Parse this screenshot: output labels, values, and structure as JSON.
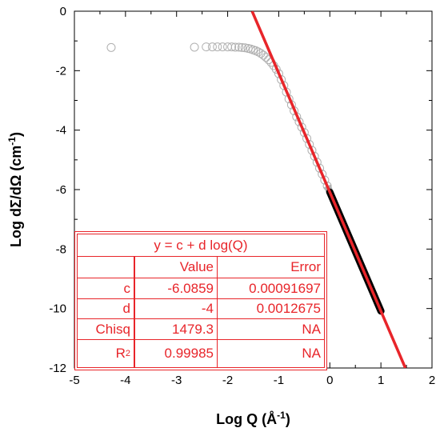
{
  "chart_data": {
    "type": "scatter",
    "xlabel_main": "Log Q (Å",
    "xlabel_sup": "-1",
    "xlabel_tail": ")",
    "ylabel_main": "Log dΣ/dΩ (cm",
    "ylabel_sup": "-1",
    "ylabel_tail": ")",
    "xlim": [
      -5,
      2
    ],
    "ylim": [
      -12,
      0
    ],
    "xticks": [
      -5,
      -4,
      -3,
      -2,
      -1,
      0,
      1,
      2
    ],
    "yticks": [
      0,
      -2,
      -4,
      -6,
      -8,
      -10,
      -12
    ],
    "grid": false,
    "series": [
      {
        "kind": "data-markers",
        "color": "#b0b0b0",
        "points": [
          [
            -4.28,
            -1.22
          ],
          [
            -2.65,
            -1.21
          ],
          [
            -2.42,
            -1.2
          ],
          [
            -2.3,
            -1.2
          ],
          [
            -2.2,
            -1.2
          ],
          [
            -2.1,
            -1.2
          ],
          [
            -2.0,
            -1.2
          ],
          [
            -1.92,
            -1.2
          ],
          [
            -1.85,
            -1.21
          ],
          [
            -1.78,
            -1.21
          ],
          [
            -1.72,
            -1.22
          ],
          [
            -1.66,
            -1.23
          ],
          [
            -1.6,
            -1.25
          ],
          [
            -1.55,
            -1.27
          ],
          [
            -1.5,
            -1.3
          ],
          [
            -1.45,
            -1.33
          ],
          [
            -1.4,
            -1.37
          ],
          [
            -1.35,
            -1.42
          ],
          [
            -1.3,
            -1.48
          ],
          [
            -1.25,
            -1.55
          ],
          [
            -1.2,
            -1.63
          ],
          [
            -1.15,
            -1.72
          ],
          [
            -1.1,
            -1.83
          ],
          [
            -1.05,
            -1.95
          ],
          [
            -1.0,
            -2.1
          ],
          [
            -0.95,
            -2.3
          ],
          [
            -0.9,
            -2.5
          ],
          [
            -0.85,
            -2.72
          ],
          [
            -0.8,
            -2.95
          ],
          [
            -0.75,
            -3.15
          ],
          [
            -0.7,
            -3.35
          ],
          [
            -0.65,
            -3.55
          ],
          [
            -0.6,
            -3.72
          ],
          [
            -0.55,
            -3.9
          ],
          [
            -0.5,
            -4.08
          ],
          [
            -0.45,
            -4.28
          ],
          [
            -0.4,
            -4.48
          ],
          [
            -0.35,
            -4.68
          ],
          [
            -0.3,
            -4.88
          ],
          [
            -0.25,
            -5.08
          ],
          [
            -0.2,
            -5.28
          ],
          [
            -0.15,
            -5.48
          ],
          [
            -0.1,
            -5.68
          ],
          [
            -0.05,
            -5.88
          ]
        ]
      },
      {
        "kind": "fitted-data",
        "color": "#000000",
        "x_range": [
          0,
          1
        ]
      },
      {
        "kind": "fit-line",
        "color": "#e8252a",
        "intercept": -6.0859,
        "slope": -4
      }
    ],
    "fit_table": {
      "title": "y = c + d log(Q)",
      "headers": [
        "",
        "Value",
        "Error"
      ],
      "rows": [
        {
          "name": "c",
          "value": "-6.0859",
          "error": "0.00091697"
        },
        {
          "name": "d",
          "value": "-4",
          "error": "0.0012675"
        },
        {
          "name": "Chisq",
          "value": "1479.3",
          "error": "NA"
        },
        {
          "name": "R",
          "name_sup": "2",
          "value": "0.99985",
          "error": "NA"
        }
      ]
    }
  }
}
